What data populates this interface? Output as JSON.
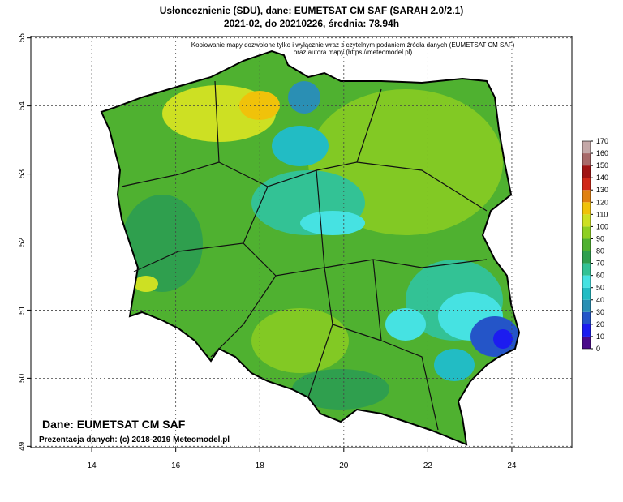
{
  "map": {
    "title": "Usłonecznienie (SDU), dane: EUMETSAT CM SAF (SARAH 2.0/2.1)",
    "subtitle": "2021-02, do 20210226, średnia: 78.94h",
    "notice": [
      "Kopiowanie mapy dozwolone tylko i wyłącznie wraz z czytelnym podaniem źródła danych (EUMETSAT CM SAF)",
      "oraz autora mapy (https://meteomodel.pl)"
    ],
    "source": "Dane: EUMETSAT CM SAF",
    "credit": "Prezentacja danych: (c) 2018-2019 Meteomodel.pl",
    "xlim": [
      12.55,
      25.43
    ],
    "xticks": [
      14,
      16,
      18,
      20,
      22,
      24
    ],
    "ylim": [
      48.98,
      55.02
    ],
    "yticks": [
      49,
      50,
      51,
      52,
      53,
      54,
      55
    ],
    "grid": true,
    "colorbar": {
      "ticks": [
        0,
        10,
        20,
        30,
        40,
        50,
        60,
        70,
        80,
        90,
        100,
        110,
        120,
        130,
        140,
        150,
        160,
        170
      ],
      "colors": [
        "#4a0a8a",
        "#1c1cf0",
        "#2455c8",
        "#2a8fb4",
        "#22bcc4",
        "#46e2e2",
        "#33c295",
        "#2f9f4e",
        "#4fb130",
        "#8ecf22",
        "#cde023",
        "#f0c20a",
        "#e08010",
        "#d02818",
        "#a01414",
        "#a86a6a",
        "#c4a8a8"
      ]
    }
  }
}
